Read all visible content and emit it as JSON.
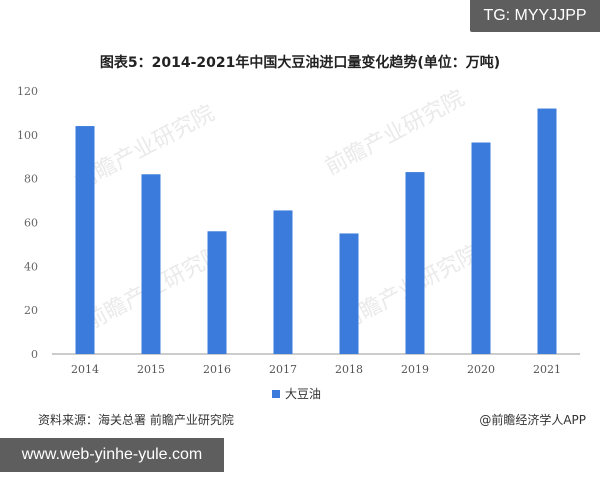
{
  "badge_top": "TG: MYYJJPP",
  "badge_bottom": "www.web-yinhe-yule.com",
  "source_text": "资料来源：海关总署 前瞻产业研究院",
  "brand_text": "@前瞻经济学人APP",
  "watermark_text": "前瞻产业研究院",
  "colors": {
    "bar": "#3b7bdc",
    "axis": "#999999",
    "text": "#333333"
  },
  "chart_data": {
    "type": "bar",
    "title": "图表5：2014-2021年中国大豆油进口量变化趋势(单位：万吨)",
    "categories": [
      "2014",
      "2015",
      "2016",
      "2017",
      "2018",
      "2019",
      "2020",
      "2021"
    ],
    "series": [
      {
        "name": "大豆油",
        "values": [
          104,
          82,
          56,
          65.5,
          55,
          83,
          96.5,
          112
        ]
      }
    ],
    "ylim": [
      0,
      120
    ],
    "yticks": [
      0,
      20,
      40,
      60,
      80,
      100,
      120
    ],
    "xlabel": "",
    "ylabel": "",
    "grid": false,
    "legend": "bottom"
  }
}
